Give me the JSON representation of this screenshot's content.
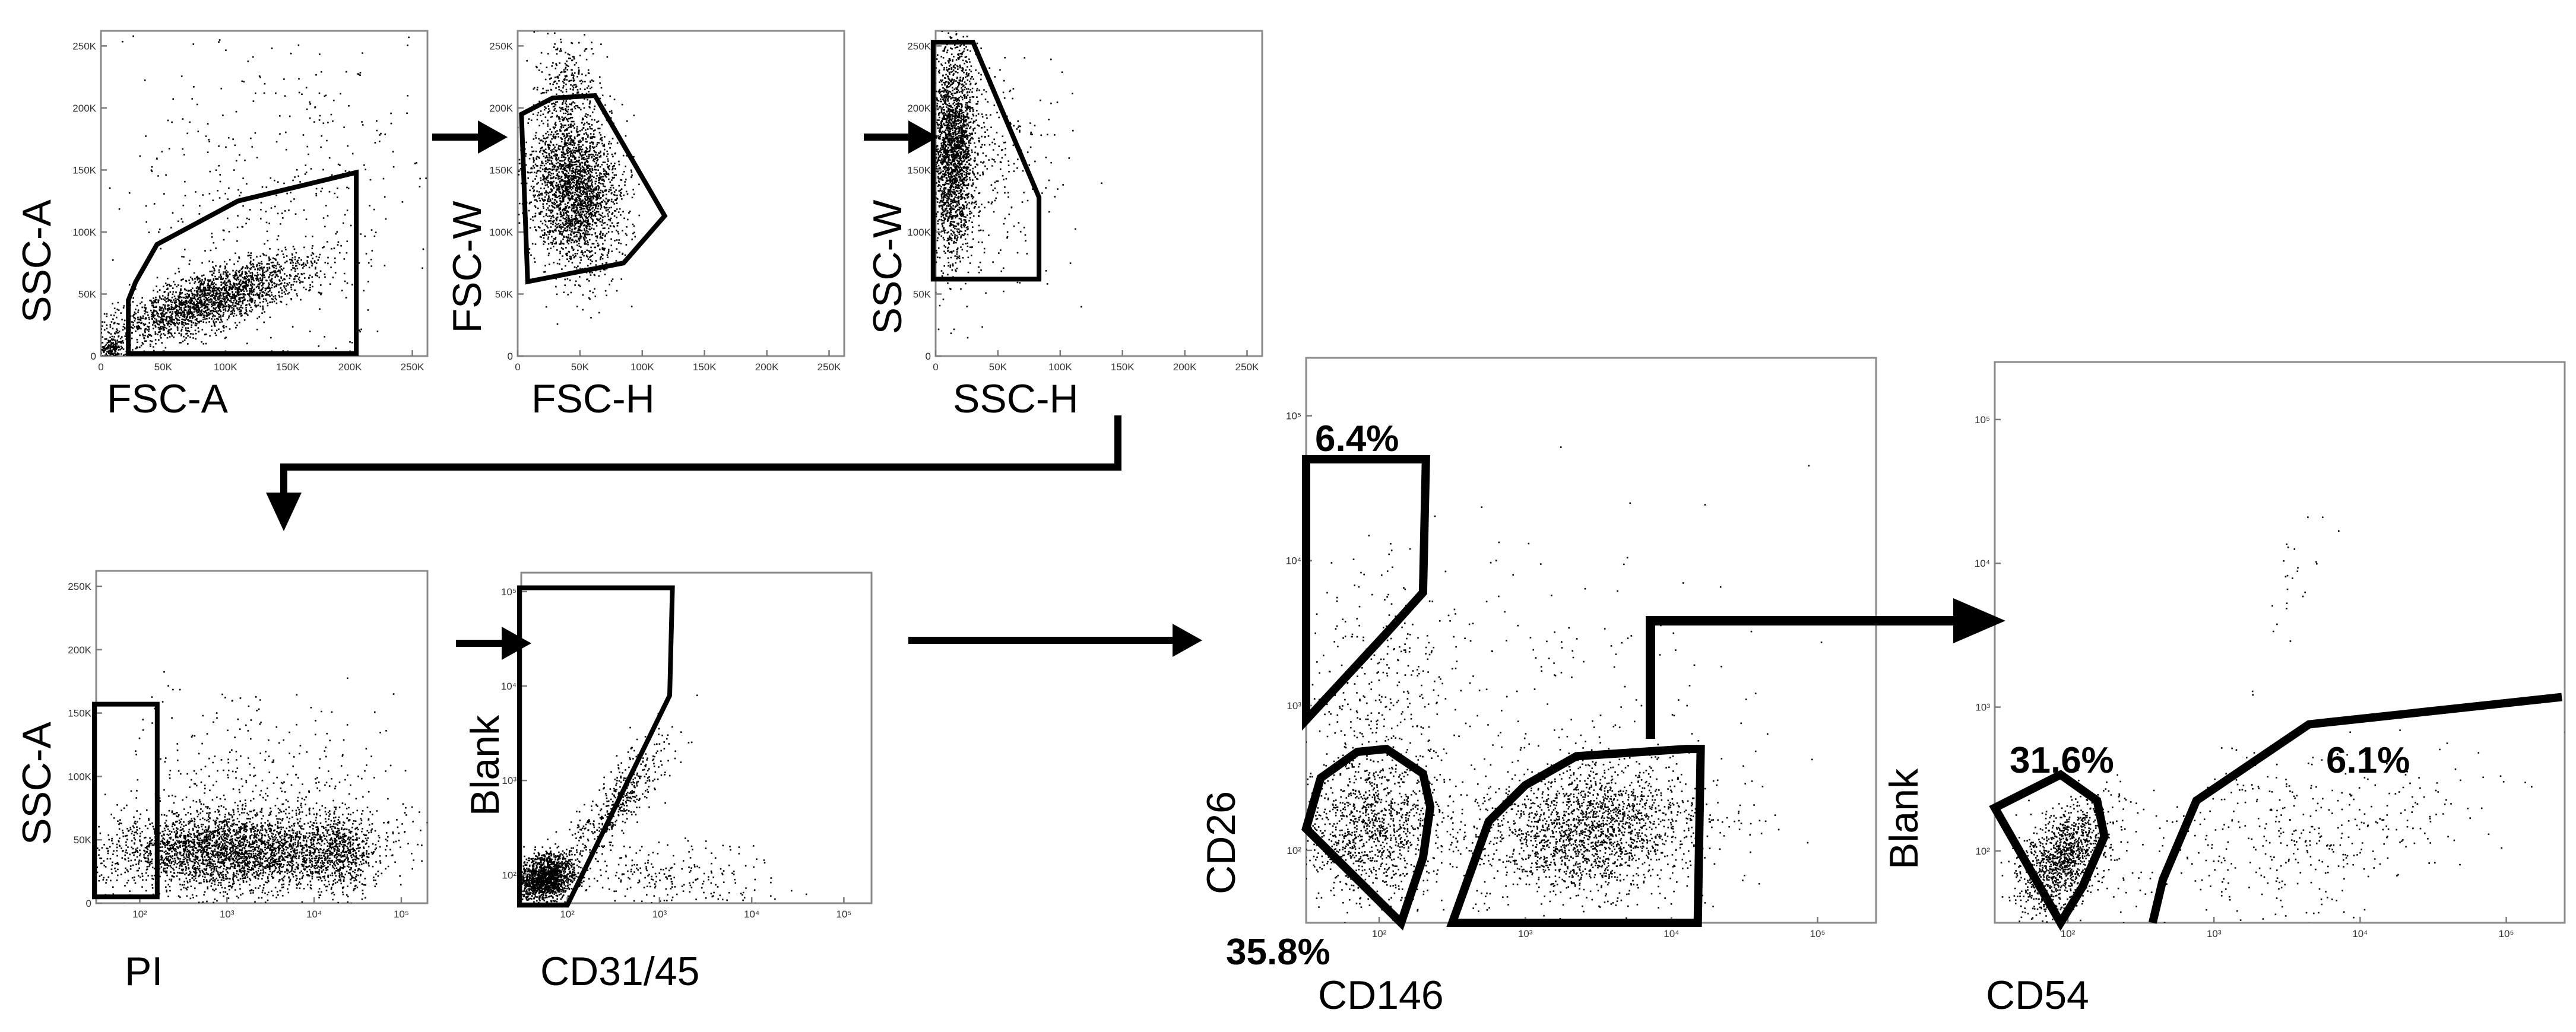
{
  "chart_data": [
    {
      "id": "p1",
      "type": "scatter",
      "xlabel": "FSC-A",
      "ylabel": "SSC-A",
      "x_scale": "linear",
      "y_scale": "linear",
      "xlim": [
        0,
        262144
      ],
      "ylim": [
        0,
        262144
      ],
      "xticks": [
        0,
        50000,
        100000,
        150000,
        200000,
        250000
      ],
      "xtick_labels": [
        "0",
        "50K",
        "100K",
        "150K",
        "200K",
        "250K"
      ],
      "yticks": [
        0,
        50000,
        100000,
        150000,
        200000,
        250000
      ],
      "ytick_labels": [
        "0",
        "50K",
        "100K",
        "150K",
        "200K",
        "250K"
      ],
      "gates": [
        {
          "label": "",
          "points": [
            [
              22000,
              2000
            ],
            [
              22000,
              45000
            ],
            [
              28000,
              60000
            ],
            [
              45000,
              90000
            ],
            [
              110000,
              125000
            ],
            [
              205000,
              148000
            ],
            [
              205000,
              2000
            ]
          ]
        }
      ],
      "populations": [
        {
          "n": 2200,
          "cx": 85000,
          "cy": 45000,
          "sx": 42000,
          "sy": 18000,
          "rho": 0.78
        },
        {
          "n": 500,
          "cx": 140000,
          "cy": 120000,
          "sx": 70000,
          "sy": 75000,
          "rho": 0.2
        },
        {
          "n": 150,
          "cx": 8000,
          "cy": 6000,
          "sx": 5000,
          "sy": 4000,
          "rho": 0
        }
      ]
    },
    {
      "id": "p2",
      "type": "scatter",
      "xlabel": "FSC-H",
      "ylabel": "FSC-W",
      "x_scale": "linear",
      "y_scale": "linear",
      "xlim": [
        0,
        262144
      ],
      "ylim": [
        0,
        262144
      ],
      "xticks": [
        0,
        50000,
        100000,
        150000,
        200000,
        250000
      ],
      "xtick_labels": [
        "0",
        "50K",
        "100K",
        "150K",
        "200K",
        "250K"
      ],
      "yticks": [
        0,
        50000,
        100000,
        150000,
        200000,
        250000
      ],
      "ytick_labels": [
        "0",
        "50K",
        "100K",
        "150K",
        "200K",
        "250K"
      ],
      "gates": [
        {
          "label": "",
          "points": [
            [
              3000,
              195000
            ],
            [
              28000,
              208000
            ],
            [
              62000,
              210000
            ],
            [
              118000,
              113000
            ],
            [
              85000,
              75000
            ],
            [
              8000,
              60000
            ]
          ]
        }
      ],
      "populations": [
        {
          "n": 2600,
          "cx": 45000,
          "cy": 135000,
          "sx": 18000,
          "sy": 32000,
          "rho": -0.15
        },
        {
          "n": 250,
          "cx": 40000,
          "cy": 220000,
          "sx": 12000,
          "sy": 22000,
          "rho": 0
        }
      ]
    },
    {
      "id": "p3",
      "type": "scatter",
      "xlabel": "SSC-H",
      "ylabel": "SSC-W",
      "x_scale": "linear",
      "y_scale": "linear",
      "xlim": [
        0,
        262144
      ],
      "ylim": [
        0,
        262144
      ],
      "xticks": [
        0,
        50000,
        100000,
        150000,
        200000,
        250000
      ],
      "xtick_labels": [
        "0",
        "50K",
        "100K",
        "150K",
        "200K",
        "250K"
      ],
      "yticks": [
        0,
        50000,
        100000,
        150000,
        200000,
        250000
      ],
      "ytick_labels": [
        "0",
        "50K",
        "100K",
        "150K",
        "200K",
        "250K"
      ],
      "gates": [
        {
          "label": "",
          "points": [
            [
              -2000,
              253000
            ],
            [
              30000,
              253000
            ],
            [
              83000,
              128000
            ],
            [
              83000,
              62000
            ],
            [
              -2000,
              62000
            ]
          ]
        }
      ],
      "populations": [
        {
          "n": 2300,
          "cx": 14000,
          "cy": 165000,
          "sx": 9000,
          "sy": 42000,
          "rho": 0.1
        },
        {
          "n": 300,
          "cx": 40000,
          "cy": 150000,
          "sx": 30000,
          "sy": 50000,
          "rho": 0
        }
      ]
    },
    {
      "id": "p4",
      "type": "scatter",
      "xlabel": "PI",
      "ylabel": "SSC-A",
      "x_scale": "log",
      "y_scale": "linear",
      "xlim": [
        1.5,
        5.3
      ],
      "ylim": [
        0,
        262144
      ],
      "xticks": [
        2,
        3,
        4,
        5
      ],
      "xtick_labels": [
        "10²",
        "10³",
        "10⁴",
        "10⁵"
      ],
      "yticks": [
        0,
        50000,
        100000,
        150000,
        200000,
        250000
      ],
      "ytick_labels": [
        "0",
        "50K",
        "100K",
        "150K",
        "200K",
        "250K"
      ],
      "gates": [
        {
          "label": "",
          "points": [
            [
              1.48,
              157000
            ],
            [
              2.2,
              157000
            ],
            [
              2.2,
              5000
            ],
            [
              1.48,
              5000
            ]
          ]
        }
      ],
      "populations": [
        {
          "n": 3200,
          "cx": 3.1,
          "cy": 42000,
          "sx": 0.75,
          "sy": 16000,
          "rho": 0.05
        },
        {
          "n": 500,
          "cx": 4.3,
          "cy": 40000,
          "sx": 0.18,
          "sy": 16000,
          "rho": 0
        },
        {
          "n": 300,
          "cx": 3.3,
          "cy": 100000,
          "sx": 0.9,
          "sy": 30000,
          "rho": 0
        }
      ]
    },
    {
      "id": "p5",
      "type": "scatter",
      "xlabel": "CD31/45",
      "ylabel": "Blank",
      "x_scale": "log",
      "y_scale": "log",
      "xlim": [
        1.5,
        5.3
      ],
      "ylim": [
        1.7,
        5.2
      ],
      "xticks": [
        2,
        3,
        4,
        5
      ],
      "xtick_labels": [
        "10²",
        "10³",
        "10⁴",
        "10⁵"
      ],
      "yticks": [
        2,
        3,
        4,
        5
      ],
      "ytick_labels": [
        "10²",
        "10³",
        "10⁴",
        "10⁵"
      ],
      "gates": [
        {
          "label": "",
          "points": [
            [
              1.48,
              5.04
            ],
            [
              3.14,
              5.04
            ],
            [
              3.11,
              3.9
            ],
            [
              2.0,
              1.68
            ],
            [
              1.48,
              1.68
            ]
          ]
        }
      ],
      "populations": [
        {
          "n": 1500,
          "cx": 1.75,
          "cy": 1.98,
          "sx": 0.16,
          "sy": 0.12,
          "rho": 0.2
        },
        {
          "n": 450,
          "cx": 2.5,
          "cy": 2.75,
          "sx": 0.3,
          "sy": 0.35,
          "rho": 0.85
        },
        {
          "n": 250,
          "cx": 3.0,
          "cy": 2.0,
          "sx": 0.6,
          "sy": 0.18,
          "rho": 0
        }
      ]
    },
    {
      "id": "p6",
      "type": "scatter",
      "xlabel": "CD146",
      "ylabel": "CD26",
      "x_scale": "log",
      "y_scale": "log",
      "xlim": [
        1.5,
        5.4
      ],
      "ylim": [
        1.5,
        5.4
      ],
      "xticks": [
        2,
        3,
        4,
        5
      ],
      "xtick_labels": [
        "10²",
        "10³",
        "10⁴",
        "10⁵"
      ],
      "yticks": [
        2,
        3,
        4,
        5
      ],
      "ytick_labels": [
        "10²",
        "10³",
        "10⁴",
        "10⁵"
      ],
      "gates": [
        {
          "label": "6.4%",
          "points": [
            [
              1.5,
              2.9
            ],
            [
              2.05,
              3.5
            ],
            [
              2.3,
              3.78
            ],
            [
              2.32,
              4.7
            ],
            [
              1.5,
              4.7
            ]
          ]
        },
        {
          "label": "35.8%",
          "points": [
            [
              1.5,
              2.15
            ],
            [
              1.6,
              2.5
            ],
            [
              1.85,
              2.68
            ],
            [
              2.05,
              2.7
            ],
            [
              2.3,
              2.53
            ],
            [
              2.35,
              2.3
            ],
            [
              2.3,
              1.95
            ],
            [
              2.15,
              1.5
            ]
          ]
        },
        {
          "label": "",
          "points": [
            [
              2.5,
              1.5
            ],
            [
              2.75,
              2.2
            ],
            [
              3.0,
              2.45
            ],
            [
              3.35,
              2.65
            ],
            [
              4.1,
              2.7
            ],
            [
              4.2,
              2.7
            ],
            [
              4.18,
              1.5
            ]
          ]
        }
      ],
      "populations": [
        {
          "n": 2000,
          "cx": 3.45,
          "cy": 2.15,
          "sx": 0.38,
          "sy": 0.22,
          "rho": 0.15
        },
        {
          "n": 1100,
          "cx": 1.95,
          "cy": 2.15,
          "sx": 0.25,
          "sy": 0.25,
          "rho": 0.1
        },
        {
          "n": 350,
          "cx": 2.0,
          "cy": 3.1,
          "sx": 0.3,
          "sy": 0.45,
          "rho": 0
        },
        {
          "n": 250,
          "cx": 3.0,
          "cy": 2.8,
          "sx": 0.8,
          "sy": 0.7,
          "rho": 0
        }
      ]
    },
    {
      "id": "p7",
      "type": "scatter",
      "xlabel": "CD54",
      "ylabel": "Blank",
      "x_scale": "log",
      "y_scale": "log",
      "xlim": [
        1.5,
        5.4
      ],
      "ylim": [
        1.5,
        5.4
      ],
      "xticks": [
        2,
        3,
        4,
        5
      ],
      "xtick_labels": [
        "10²",
        "10³",
        "10⁴",
        "10⁵"
      ],
      "yticks": [
        2,
        3,
        4,
        5
      ],
      "ytick_labels": [
        "10²",
        "10³",
        "10⁴",
        "10⁵"
      ],
      "gates": [
        {
          "label": "31.6%",
          "points": [
            [
              1.5,
              2.3
            ],
            [
              1.95,
              2.53
            ],
            [
              2.2,
              2.35
            ],
            [
              2.25,
              2.1
            ],
            [
              2.1,
              1.75
            ],
            [
              1.95,
              1.5
            ]
          ]
        },
        {
          "label": "6.1%",
          "points": [
            [
              2.58,
              1.5
            ],
            [
              2.65,
              1.8
            ],
            [
              2.88,
              2.35
            ],
            [
              3.65,
              2.88
            ],
            [
              5.38,
              3.07
            ]
          ]
        }
      ],
      "populations": [
        {
          "n": 1200,
          "cx": 1.95,
          "cy": 1.95,
          "sx": 0.16,
          "sy": 0.2,
          "rho": 0.45
        },
        {
          "n": 450,
          "cx": 3.5,
          "cy": 2.1,
          "sx": 0.65,
          "sy": 0.3,
          "rho": 0.3
        },
        {
          "n": 25,
          "cx": 3.5,
          "cy": 3.8,
          "sx": 0.15,
          "sy": 0.3,
          "rho": 0.9
        }
      ]
    }
  ]
}
